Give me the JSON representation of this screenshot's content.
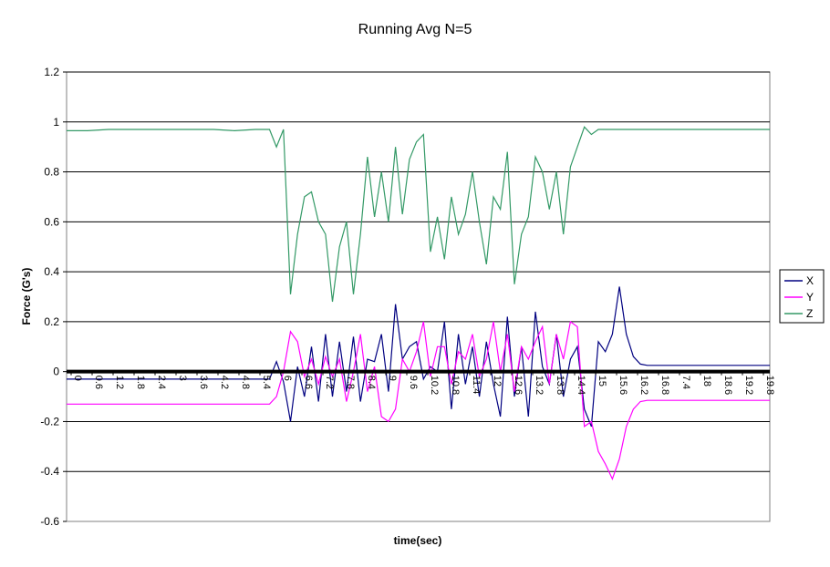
{
  "chart_data": {
    "type": "line",
    "title": "Running Avg N=5",
    "xlabel": "time(sec)",
    "ylabel": "Force (G's)",
    "ylim": [
      -0.6,
      1.2
    ],
    "ytick_values": [
      1.2,
      1,
      0.8,
      0.6,
      0.4,
      0.2,
      0,
      -0.2,
      -0.4,
      -0.6
    ],
    "ytick_labels": [
      "1.2",
      "1",
      "0.8",
      "0.6",
      "0.4",
      "0.2",
      "0",
      "-0.2",
      "-0.4",
      "-0.6"
    ],
    "xtick_labels": [
      "0",
      "0.6",
      "1.2",
      "1.8",
      "2.4",
      "3",
      "3.6",
      "4.2",
      "4.8",
      "5.4",
      "6",
      "6.6",
      "7.2",
      "7.8",
      "8.4",
      "9",
      "9.6",
      "10.2",
      "10.8",
      "11.4",
      "12",
      "12.6",
      "13.2",
      "13.8",
      "14.4",
      "15",
      "15.6",
      "16.2",
      "16.8",
      "7.4",
      "18",
      "18.6",
      "19.2",
      "19.8"
    ],
    "xlim": [
      0,
      20.1
    ],
    "grid": true,
    "legend": "right",
    "series": [
      {
        "name": "X",
        "color": "#000080",
        "x": [
          0,
          0.6,
          1.2,
          1.8,
          2.4,
          3.0,
          3.6,
          4.2,
          4.8,
          5.4,
          5.8,
          6.0,
          6.2,
          6.4,
          6.6,
          6.8,
          7.0,
          7.2,
          7.4,
          7.6,
          7.8,
          8.0,
          8.2,
          8.4,
          8.6,
          8.8,
          9.0,
          9.2,
          9.4,
          9.6,
          9.8,
          10.0,
          10.2,
          10.4,
          10.6,
          10.8,
          11.0,
          11.2,
          11.4,
          11.6,
          11.8,
          12.0,
          12.2,
          12.4,
          12.6,
          12.8,
          13.0,
          13.2,
          13.4,
          13.6,
          13.8,
          14.0,
          14.2,
          14.4,
          14.6,
          14.8,
          15.0,
          15.2,
          15.4,
          15.6,
          15.8,
          16.0,
          16.2,
          16.4,
          16.6,
          16.8,
          17.0,
          17.4,
          18.0,
          18.6,
          19.2,
          19.8,
          20.1
        ],
        "values": [
          -0.03,
          -0.03,
          -0.03,
          -0.03,
          -0.03,
          -0.03,
          -0.03,
          -0.03,
          -0.03,
          -0.03,
          -0.03,
          0.04,
          -0.04,
          -0.2,
          0.02,
          -0.1,
          0.1,
          -0.12,
          0.15,
          -0.1,
          0.12,
          -0.08,
          0.14,
          -0.12,
          0.05,
          0.04,
          0.15,
          -0.08,
          0.27,
          0.05,
          0.1,
          0.12,
          -0.03,
          0.02,
          0.0,
          0.2,
          -0.15,
          0.15,
          -0.05,
          0.1,
          -0.1,
          0.12,
          -0.05,
          -0.18,
          0.22,
          -0.1,
          0.1,
          -0.18,
          0.24,
          0.02,
          -0.05,
          0.15,
          -0.1,
          0.05,
          0.1,
          -0.15,
          -0.22,
          0.12,
          0.08,
          0.15,
          0.34,
          0.15,
          0.06,
          0.03,
          0.025,
          0.025,
          0.025,
          0.025,
          0.025,
          0.025,
          0.025,
          0.025,
          0.025
        ]
      },
      {
        "name": "Y",
        "color": "#ff00ff",
        "x": [
          0,
          0.6,
          1.2,
          1.8,
          2.4,
          3.0,
          3.6,
          4.2,
          4.8,
          5.4,
          5.8,
          6.0,
          6.2,
          6.4,
          6.6,
          6.8,
          7.0,
          7.2,
          7.4,
          7.6,
          7.8,
          8.0,
          8.2,
          8.4,
          8.6,
          8.8,
          9.0,
          9.2,
          9.4,
          9.6,
          9.8,
          10.0,
          10.2,
          10.4,
          10.6,
          10.8,
          11.0,
          11.2,
          11.4,
          11.6,
          11.8,
          12.0,
          12.2,
          12.4,
          12.6,
          12.8,
          13.0,
          13.2,
          13.4,
          13.6,
          13.8,
          14.0,
          14.2,
          14.4,
          14.6,
          14.8,
          15.0,
          15.2,
          15.4,
          15.6,
          15.8,
          16.0,
          16.2,
          16.4,
          16.6,
          16.8,
          17.0,
          17.4,
          18.0,
          18.6,
          19.2,
          19.8,
          20.1
        ],
        "values": [
          -0.13,
          -0.13,
          -0.13,
          -0.13,
          -0.13,
          -0.13,
          -0.13,
          -0.13,
          -0.13,
          -0.13,
          -0.13,
          -0.1,
          0.0,
          0.16,
          0.12,
          -0.02,
          0.05,
          -0.05,
          0.06,
          -0.02,
          0.05,
          -0.12,
          0.0,
          0.15,
          -0.08,
          0.02,
          -0.18,
          -0.2,
          -0.15,
          0.05,
          0.0,
          0.08,
          0.2,
          -0.02,
          0.1,
          0.1,
          -0.05,
          0.08,
          0.05,
          0.15,
          -0.02,
          0.05,
          0.2,
          0.0,
          0.15,
          -0.08,
          0.1,
          0.05,
          0.12,
          0.18,
          -0.05,
          0.15,
          0.05,
          0.2,
          0.18,
          -0.22,
          -0.2,
          -0.32,
          -0.37,
          -0.43,
          -0.35,
          -0.22,
          -0.15,
          -0.12,
          -0.115,
          -0.115,
          -0.115,
          -0.115,
          -0.115,
          -0.115,
          -0.115,
          -0.115,
          -0.115
        ]
      },
      {
        "name": "Z",
        "color": "#339966",
        "x": [
          0,
          0.6,
          1.2,
          1.8,
          2.4,
          3.0,
          3.6,
          4.2,
          4.8,
          5.4,
          5.8,
          6.0,
          6.2,
          6.4,
          6.6,
          6.8,
          7.0,
          7.2,
          7.4,
          7.6,
          7.8,
          8.0,
          8.2,
          8.4,
          8.6,
          8.8,
          9.0,
          9.2,
          9.4,
          9.6,
          9.8,
          10.0,
          10.2,
          10.4,
          10.6,
          10.8,
          11.0,
          11.2,
          11.4,
          11.6,
          11.8,
          12.0,
          12.2,
          12.4,
          12.6,
          12.8,
          13.0,
          13.2,
          13.4,
          13.6,
          13.8,
          14.0,
          14.2,
          14.4,
          14.6,
          14.8,
          15.0,
          15.2,
          15.4,
          15.6,
          15.8,
          16.0,
          16.2,
          16.4,
          16.6,
          16.8,
          17.0,
          17.4,
          18.0,
          18.6,
          19.2,
          19.8,
          20.1
        ],
        "values": [
          0.965,
          0.965,
          0.97,
          0.97,
          0.97,
          0.97,
          0.97,
          0.97,
          0.965,
          0.97,
          0.97,
          0.9,
          0.97,
          0.31,
          0.55,
          0.7,
          0.72,
          0.6,
          0.55,
          0.28,
          0.5,
          0.6,
          0.31,
          0.55,
          0.86,
          0.62,
          0.8,
          0.6,
          0.9,
          0.63,
          0.85,
          0.92,
          0.95,
          0.48,
          0.62,
          0.45,
          0.7,
          0.55,
          0.63,
          0.8,
          0.6,
          0.43,
          0.7,
          0.65,
          0.88,
          0.35,
          0.55,
          0.62,
          0.86,
          0.8,
          0.65,
          0.8,
          0.55,
          0.82,
          0.9,
          0.98,
          0.95,
          0.97,
          0.97,
          0.97,
          0.97,
          0.97,
          0.97,
          0.97,
          0.97,
          0.97,
          0.97,
          0.97,
          0.97,
          0.97,
          0.97,
          0.97,
          0.97
        ]
      }
    ]
  }
}
